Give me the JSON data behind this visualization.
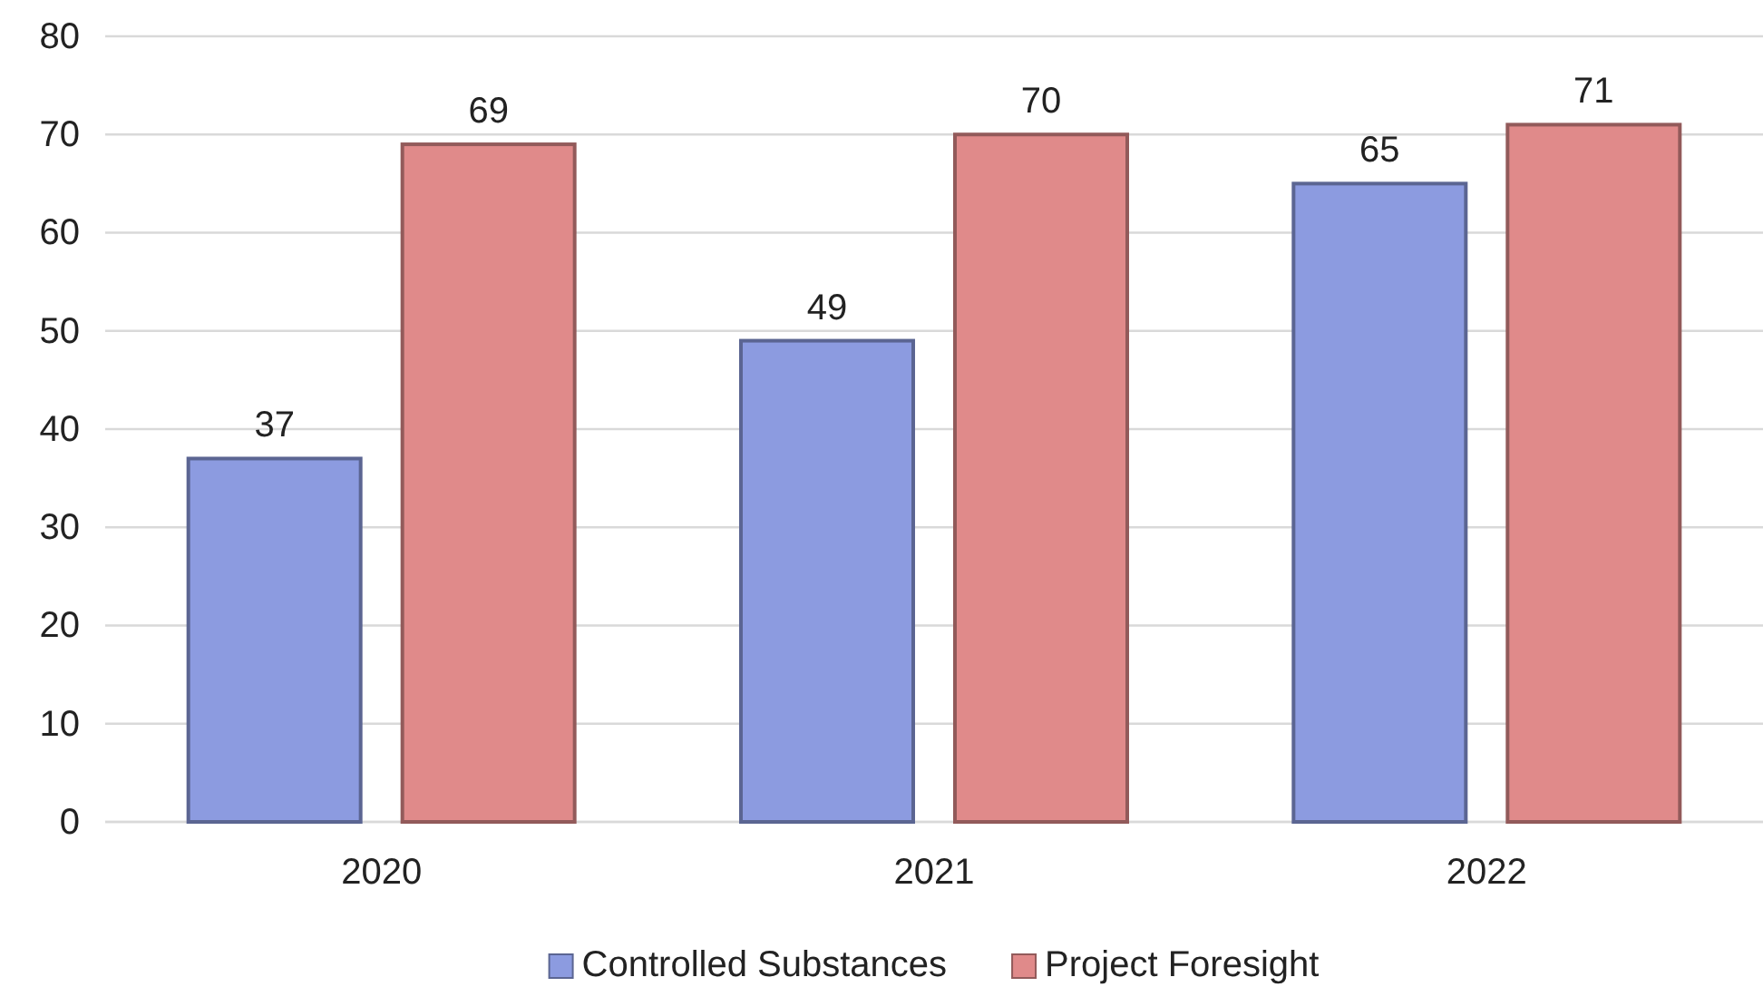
{
  "chart_data": {
    "type": "bar",
    "categories": [
      "2020",
      "2021",
      "2022"
    ],
    "series": [
      {
        "name": "Controlled Substances",
        "color": "#8c9be0",
        "values": [
          37,
          49,
          65
        ]
      },
      {
        "name": "Project Foresight",
        "color": "#e08a8a",
        "values": [
          69,
          70,
          71
        ]
      }
    ],
    "ylim": [
      0,
      80
    ],
    "yticks": [
      0,
      10,
      20,
      30,
      40,
      50,
      60,
      70,
      80
    ],
    "grid": "y",
    "legend": "bottom",
    "data_labels": true
  }
}
